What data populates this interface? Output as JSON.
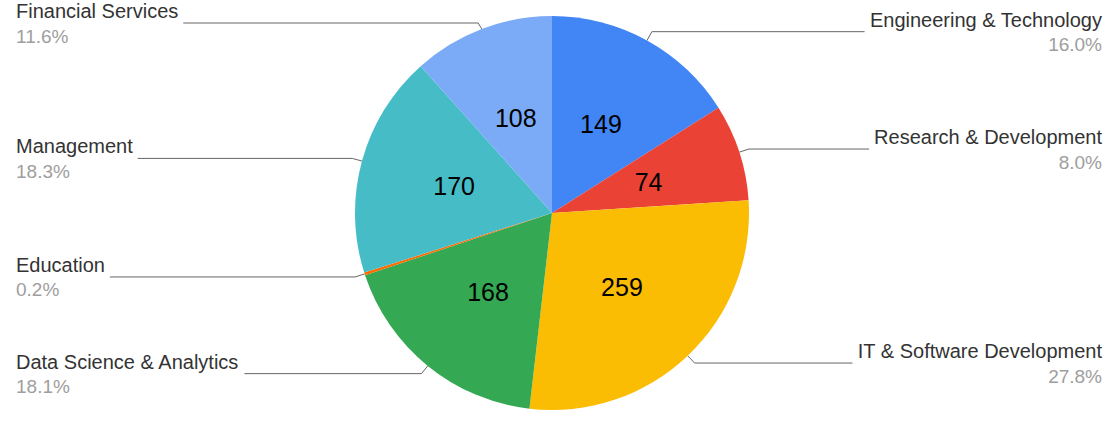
{
  "chart_data": {
    "type": "pie",
    "categories": [
      "Engineering & Technology",
      "Research & Development",
      "IT & Software Development",
      "Data Science & Analytics",
      "Education",
      "Management",
      "Financial Services"
    ],
    "values": [
      149,
      74,
      259,
      168,
      2,
      170,
      108
    ],
    "value_labels": [
      "149",
      "74",
      "259",
      "168",
      null,
      "170",
      "108"
    ],
    "percentages": [
      16.0,
      8.0,
      27.8,
      18.1,
      0.2,
      18.3,
      11.6
    ],
    "percentage_labels": [
      "16.0%",
      "8.0%",
      "27.8%",
      "18.1%",
      "0.2%",
      "18.3%",
      "11.6%"
    ],
    "colors": [
      "#4285f4",
      "#ea4335",
      "#fbbc04",
      "#34a853",
      "#ff6d01",
      "#46bdc6",
      "#7baaf7"
    ],
    "data_labels": true
  }
}
